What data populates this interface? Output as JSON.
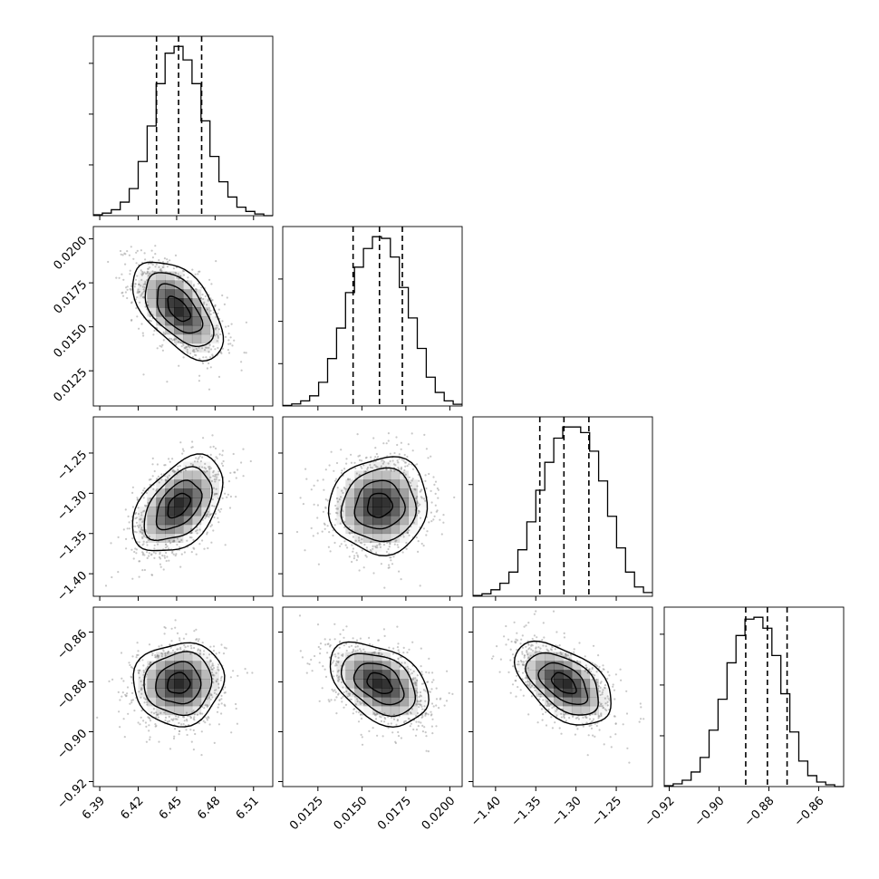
{
  "chart_data": {
    "type": "corner",
    "parameters": [
      {
        "range": [
          6.385,
          6.525
        ],
        "ticks": [
          6.39,
          6.42,
          6.45,
          6.48,
          6.51
        ],
        "tick_labels": [
          "6.39",
          "6.42",
          "6.45",
          "6.48",
          "6.51"
        ],
        "quantiles": [
          6.4343,
          6.4515,
          6.4695
        ]
      },
      {
        "range": [
          0.0105,
          0.0207
        ],
        "ticks": [
          0.0125,
          0.015,
          0.0175,
          0.02
        ],
        "tick_labels": [
          "0.0125",
          "0.0150",
          "0.0175",
          "0.0200"
        ],
        "quantiles": [
          0.0145,
          0.016,
          0.0173
        ]
      },
      {
        "range": [
          -1.428,
          -1.205
        ],
        "ticks": [
          -1.4,
          -1.35,
          -1.3,
          -1.25
        ],
        "tick_labels": [
          "−1.40",
          "−1.35",
          "−1.30",
          "−1.25"
        ],
        "quantiles": [
          -1.345,
          -1.315,
          -1.284
        ]
      },
      {
        "range": [
          -0.922,
          -0.85
        ],
        "ticks": [
          -0.92,
          -0.9,
          -0.88,
          -0.86
        ],
        "tick_labels": [
          "−0.92",
          "−0.90",
          "−0.88",
          "−0.86"
        ],
        "quantiles": [
          -0.8893,
          -0.8806,
          -0.8727
        ]
      }
    ],
    "histograms": [
      [
        0.5,
        1.5,
        3.5,
        8,
        16,
        32,
        53,
        78,
        96,
        100,
        92,
        78,
        56,
        35,
        20,
        11,
        5,
        2.5,
        1,
        0
      ],
      [
        0.3,
        1.2,
        3,
        6,
        14,
        28,
        46,
        67,
        82,
        93,
        100,
        99,
        88,
        70,
        52,
        34,
        17,
        8,
        3,
        1
      ],
      [
        0.4,
        1.3,
        3.5,
        7,
        13,
        25,
        40,
        57,
        72,
        85,
        91,
        91,
        88,
        78,
        62,
        43,
        26,
        13,
        5,
        2
      ],
      [
        0.5,
        1.5,
        3.5,
        8,
        16,
        31,
        48,
        68,
        83,
        92,
        93,
        87,
        72,
        51,
        30,
        14,
        6,
        2.5,
        1,
        0
      ]
    ],
    "histogram_max_ticks": [
      [
        0.3,
        0.6,
        0.9
      ],
      [
        0.25,
        0.5,
        0.75
      ],
      [
        0.33,
        0.66
      ],
      [
        0.3,
        0.6,
        0.9
      ]
    ],
    "pairs": [
      {
        "i": 1,
        "j": 0,
        "corr": -0.55
      },
      {
        "i": 2,
        "j": 0,
        "corr": 0.45
      },
      {
        "i": 2,
        "j": 1,
        "corr": 0.05
      },
      {
        "i": 3,
        "j": 0,
        "corr": 0.05
      },
      {
        "i": 3,
        "j": 1,
        "corr": -0.4
      },
      {
        "i": 3,
        "j": 2,
        "corr": -0.5
      }
    ],
    "means": [
      6.4515,
      0.016,
      -1.315,
      -0.8806
    ],
    "sds": [
      0.0176,
      0.0014,
      0.03,
      0.0083
    ],
    "grid": true,
    "contour_levels_sigma": [
      0.5,
      1.0,
      1.5,
      2.0
    ],
    "colors": {
      "points": "#9a9a9a",
      "density": "#000000",
      "contour": "#000000",
      "grid": "#b0b0b0",
      "quantile": "#000000"
    }
  }
}
